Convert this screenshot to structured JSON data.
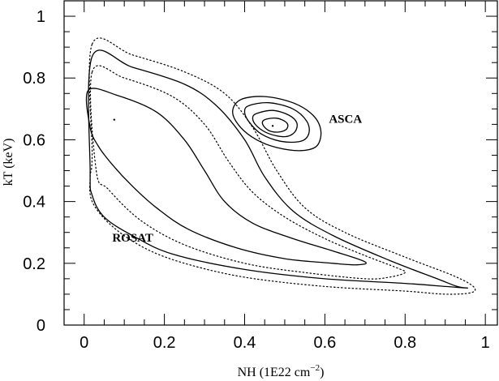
{
  "chart_data": {
    "type": "contour",
    "xlabel": "NH (1E22 cm",
    "xlabel_sup": "−2",
    "xlabel_close": ")",
    "ylabel": "kT (keV)",
    "xlim": [
      -0.05,
      1.03
    ],
    "ylim": [
      0,
      1.05
    ],
    "xticks": [
      0,
      0.2,
      0.4,
      0.6,
      0.8,
      1
    ],
    "xtick_labels": [
      "0",
      "0.2",
      "0.4",
      "0.6",
      "0.8",
      "1"
    ],
    "yticks": [
      0,
      0.2,
      0.4,
      0.6,
      0.8,
      1
    ],
    "ytick_labels": [
      "0",
      "0.2",
      "0.4",
      "0.6",
      "0.8",
      "1"
    ],
    "annotations": [
      {
        "text": "ASCA",
        "x": 0.61,
        "y": 0.655
      },
      {
        "text": "ROSAT",
        "x": 0.07,
        "y": 0.27
      }
    ],
    "contours": [
      {
        "name": "rosat-outer-dotted",
        "style": "dotted",
        "points": [
          [
            0.02,
            0.91
          ],
          [
            0.12,
            0.875
          ],
          [
            0.25,
            0.82
          ],
          [
            0.35,
            0.75
          ],
          [
            0.42,
            0.64
          ],
          [
            0.48,
            0.5
          ],
          [
            0.55,
            0.38
          ],
          [
            0.65,
            0.3
          ],
          [
            0.8,
            0.22
          ],
          [
            0.92,
            0.16
          ],
          [
            0.97,
            0.125
          ],
          [
            0.965,
            0.105
          ],
          [
            0.9,
            0.1
          ],
          [
            0.8,
            0.11
          ],
          [
            0.6,
            0.125
          ],
          [
            0.4,
            0.155
          ],
          [
            0.25,
            0.2
          ],
          [
            0.15,
            0.25
          ],
          [
            0.07,
            0.32
          ],
          [
            0.02,
            0.4
          ],
          [
            0.015,
            0.48
          ],
          [
            0.02,
            0.55
          ]
        ]
      },
      {
        "name": "rosat-outer-solid",
        "style": "solid",
        "points": [
          [
            0.02,
            0.87
          ],
          [
            0.12,
            0.835
          ],
          [
            0.25,
            0.78
          ],
          [
            0.33,
            0.71
          ],
          [
            0.4,
            0.6
          ],
          [
            0.45,
            0.48
          ],
          [
            0.52,
            0.37
          ],
          [
            0.62,
            0.29
          ],
          [
            0.76,
            0.21
          ],
          [
            0.88,
            0.15
          ],
          [
            0.93,
            0.125
          ],
          [
            0.955,
            0.12
          ],
          [
            0.9,
            0.125
          ],
          [
            0.8,
            0.135
          ],
          [
            0.6,
            0.15
          ],
          [
            0.4,
            0.18
          ],
          [
            0.22,
            0.23
          ],
          [
            0.12,
            0.29
          ],
          [
            0.05,
            0.35
          ],
          [
            0.02,
            0.42
          ],
          [
            0.015,
            0.5
          ]
        ]
      },
      {
        "name": "rosat-mid-dotted",
        "style": "dotted",
        "points": [
          [
            0.02,
            0.82
          ],
          [
            0.1,
            0.8
          ],
          [
            0.22,
            0.74
          ],
          [
            0.3,
            0.65
          ],
          [
            0.36,
            0.53
          ],
          [
            0.42,
            0.43
          ],
          [
            0.5,
            0.35
          ],
          [
            0.6,
            0.28
          ],
          [
            0.7,
            0.225
          ],
          [
            0.78,
            0.185
          ],
          [
            0.8,
            0.17
          ],
          [
            0.76,
            0.155
          ],
          [
            0.7,
            0.15
          ],
          [
            0.55,
            0.17
          ],
          [
            0.4,
            0.2
          ],
          [
            0.25,
            0.26
          ],
          [
            0.14,
            0.34
          ],
          [
            0.06,
            0.44
          ],
          [
            0.03,
            0.5
          ]
        ]
      },
      {
        "name": "rosat-inner-solid",
        "style": "solid",
        "points": [
          [
            0.01,
            0.76
          ],
          [
            0.08,
            0.745
          ],
          [
            0.18,
            0.69
          ],
          [
            0.25,
            0.6
          ],
          [
            0.3,
            0.5
          ],
          [
            0.35,
            0.4
          ],
          [
            0.42,
            0.33
          ],
          [
            0.52,
            0.28
          ],
          [
            0.62,
            0.24
          ],
          [
            0.7,
            0.205
          ],
          [
            0.68,
            0.195
          ],
          [
            0.62,
            0.2
          ],
          [
            0.5,
            0.215
          ],
          [
            0.38,
            0.25
          ],
          [
            0.26,
            0.31
          ],
          [
            0.18,
            0.38
          ],
          [
            0.12,
            0.45
          ],
          [
            0.07,
            0.52
          ],
          [
            0.035,
            0.58
          ],
          [
            0.015,
            0.64
          ]
        ]
      },
      {
        "name": "asca-outer",
        "style": "solid",
        "points": [
          [
            0.39,
            0.73
          ],
          [
            0.45,
            0.74
          ],
          [
            0.52,
            0.72
          ],
          [
            0.57,
            0.68
          ],
          [
            0.59,
            0.63
          ],
          [
            0.58,
            0.58
          ],
          [
            0.54,
            0.565
          ],
          [
            0.48,
            0.575
          ],
          [
            0.43,
            0.6
          ],
          [
            0.39,
            0.64
          ],
          [
            0.37,
            0.69
          ]
        ]
      },
      {
        "name": "asca-mid",
        "style": "solid",
        "points": [
          [
            0.41,
            0.71
          ],
          [
            0.46,
            0.72
          ],
          [
            0.52,
            0.7
          ],
          [
            0.555,
            0.66
          ],
          [
            0.56,
            0.62
          ],
          [
            0.54,
            0.595
          ],
          [
            0.49,
            0.595
          ],
          [
            0.44,
            0.62
          ],
          [
            0.41,
            0.66
          ],
          [
            0.4,
            0.69
          ]
        ]
      },
      {
        "name": "asca-inner",
        "style": "solid",
        "points": [
          [
            0.43,
            0.685
          ],
          [
            0.47,
            0.695
          ],
          [
            0.51,
            0.68
          ],
          [
            0.53,
            0.655
          ],
          [
            0.525,
            0.625
          ],
          [
            0.5,
            0.61
          ],
          [
            0.46,
            0.62
          ],
          [
            0.43,
            0.645
          ],
          [
            0.42,
            0.67
          ]
        ]
      },
      {
        "name": "asca-core",
        "style": "solid",
        "points": [
          [
            0.45,
            0.665
          ],
          [
            0.48,
            0.67
          ],
          [
            0.505,
            0.655
          ],
          [
            0.505,
            0.635
          ],
          [
            0.485,
            0.625
          ],
          [
            0.46,
            0.63
          ],
          [
            0.445,
            0.65
          ]
        ]
      }
    ],
    "markers": [
      {
        "name": "asca-best-fit",
        "x": 0.47,
        "y": 0.645
      },
      {
        "name": "rosat-best-fit",
        "x": 0.075,
        "y": 0.665
      }
    ]
  }
}
